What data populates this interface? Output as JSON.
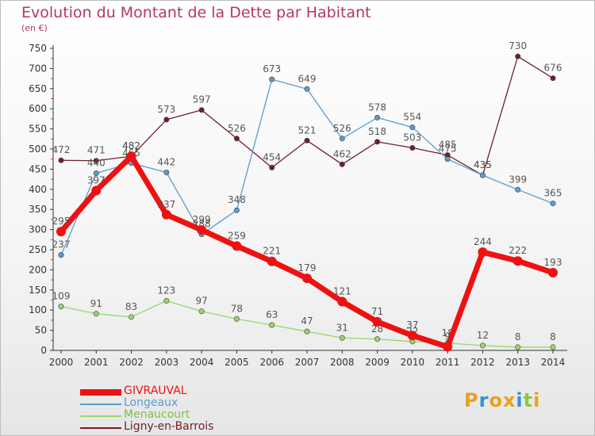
{
  "title": "Evolution du Montant de la Dette par Habitant",
  "subtitle": "(en €)",
  "logo": {
    "text": "Proxiti",
    "letters": [
      "P",
      "r",
      "o",
      "x",
      "i",
      "t",
      "i"
    ],
    "colors": [
      "#e8a020",
      "#3a8fd0",
      "#e8a020",
      "#e8a020",
      "#3a8fd0",
      "#8dc63f",
      "#e8a020"
    ]
  },
  "chart_data": {
    "type": "line",
    "title": "Evolution du Montant de la Dette par Habitant",
    "ylabel": "(en €)",
    "xlabel": "",
    "ylim": [
      0,
      750
    ],
    "yticks": [
      0,
      50,
      100,
      150,
      200,
      250,
      300,
      350,
      400,
      450,
      500,
      550,
      600,
      650,
      700,
      750
    ],
    "grid": false,
    "legend": "bottom-left",
    "categories": [
      "2000",
      "2001",
      "2002",
      "2003",
      "2004",
      "2005",
      "2006",
      "2007",
      "2008",
      "2009",
      "2010",
      "2011",
      "2012",
      "2013",
      "2014"
    ],
    "series": [
      {
        "name": "Ligny-en-Barrois",
        "color": "#6e1f28",
        "values": [
          472,
          471,
          482,
          573,
          597,
          526,
          454,
          521,
          462,
          518,
          503,
          485,
          435,
          730,
          676
        ]
      },
      {
        "name": "Menaucourt",
        "color": "#98d66a",
        "values": [
          109,
          91,
          83,
          123,
          97,
          78,
          63,
          47,
          31,
          28,
          22,
          18,
          12,
          8,
          8
        ]
      },
      {
        "name": "Longeaux",
        "color": "#5a9bd0",
        "values": [
          237,
          440,
          465,
          442,
          288,
          348,
          673,
          649,
          526,
          578,
          554,
          475,
          435,
          399,
          365
        ]
      },
      {
        "name": "GIVRAUVAL",
        "color": "#ee1111",
        "values": [
          295,
          397,
          482,
          337,
          299,
          259,
          221,
          179,
          121,
          71,
          37,
          9,
          244,
          222,
          193
        ]
      }
    ]
  }
}
